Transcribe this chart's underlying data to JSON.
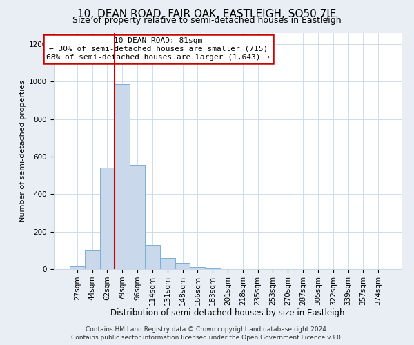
{
  "title": "10, DEAN ROAD, FAIR OAK, EASTLEIGH, SO50 7JE",
  "subtitle": "Size of property relative to semi-detached houses in Eastleigh",
  "xlabel": "Distribution of semi-detached houses by size in Eastleigh",
  "ylabel": "Number of semi-detached properties",
  "categories": [
    "27sqm",
    "44sqm",
    "62sqm",
    "79sqm",
    "96sqm",
    "114sqm",
    "131sqm",
    "148sqm",
    "166sqm",
    "183sqm",
    "201sqm",
    "218sqm",
    "235sqm",
    "253sqm",
    "270sqm",
    "287sqm",
    "305sqm",
    "322sqm",
    "339sqm",
    "357sqm",
    "374sqm"
  ],
  "values": [
    15,
    100,
    540,
    985,
    555,
    130,
    60,
    32,
    12,
    5,
    0,
    0,
    0,
    0,
    0,
    0,
    0,
    0,
    0,
    0,
    0
  ],
  "bar_color": "#c9d9eb",
  "bar_edge_color": "#7bafd4",
  "highlight_line_index": 3,
  "annotation_title": "10 DEAN ROAD: 81sqm",
  "annotation_line1": "← 30% of semi-detached houses are smaller (715)",
  "annotation_line2": "68% of semi-detached houses are larger (1,643) →",
  "annotation_box_color": "#ffffff",
  "annotation_box_edge": "#cc0000",
  "highlight_line_color": "#cc0000",
  "ylim": [
    0,
    1260
  ],
  "yticks": [
    0,
    200,
    400,
    600,
    800,
    1000,
    1200
  ],
  "footer1": "Contains HM Land Registry data © Crown copyright and database right 2024.",
  "footer2": "Contains public sector information licensed under the Open Government Licence v3.0.",
  "title_fontsize": 11,
  "subtitle_fontsize": 9,
  "tick_fontsize": 7.5,
  "ylabel_fontsize": 8,
  "xlabel_fontsize": 8.5,
  "footer_fontsize": 6.5,
  "bg_color": "#e8eef4",
  "plot_bg_color": "#ffffff"
}
